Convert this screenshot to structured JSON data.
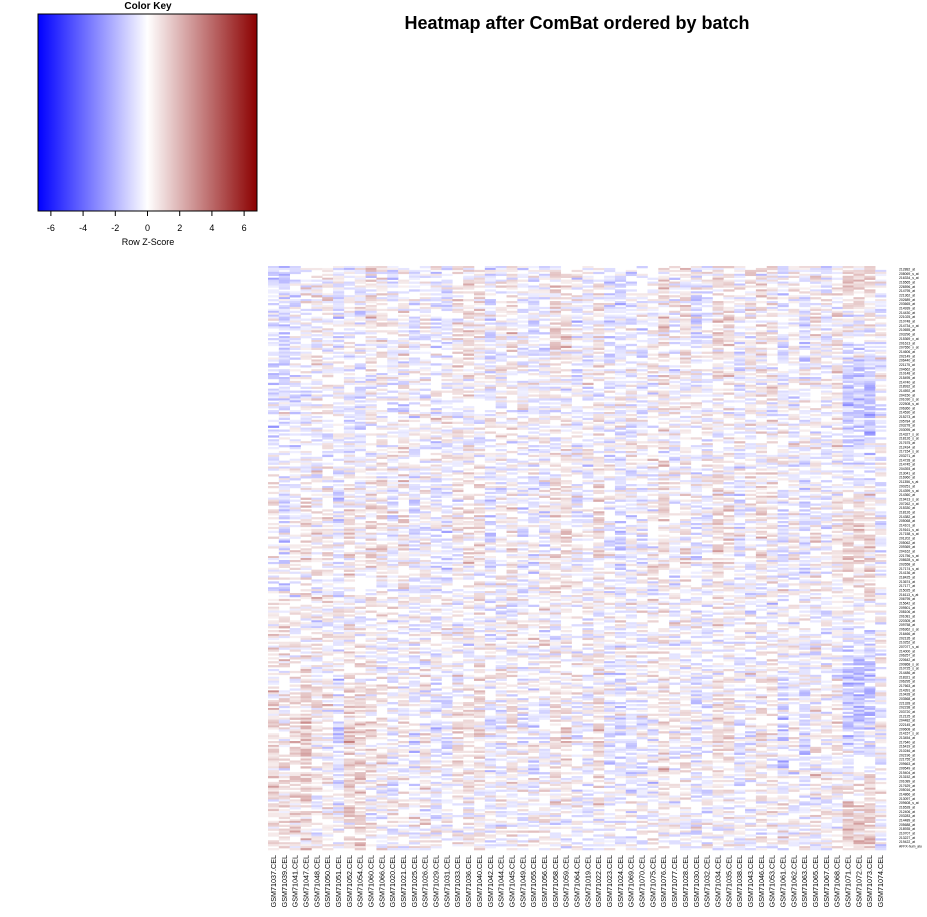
{
  "chart_data": {
    "type": "heatmap",
    "title": "Heatmap after ComBat ordered by batch",
    "color_key": {
      "title": "Color Key",
      "xlabel": "Row Z-Score",
      "ticks": [
        -6,
        -4,
        -2,
        0,
        2,
        4,
        6
      ],
      "range": [
        -6.8,
        6.8
      ],
      "colors": {
        "low": "#0000ff",
        "mid": "#ffffff",
        "high": "#8b0000"
      }
    },
    "columns": [
      "GSM71037.CEL",
      "GSM71039.CEL",
      "GSM71041.CEL",
      "GSM71047.CEL",
      "GSM71048.CEL",
      "GSM71050.CEL",
      "GSM71051.CEL",
      "GSM71052.CEL",
      "GSM71054.CEL",
      "GSM71060.CEL",
      "GSM71066.CEL",
      "GSM71020.CEL",
      "GSM71021.CEL",
      "GSM71025.CEL",
      "GSM71026.CEL",
      "GSM71029.CEL",
      "GSM71031.CEL",
      "GSM71033.CEL",
      "GSM71036.CEL",
      "GSM71040.CEL",
      "GSM71042.CEL",
      "GSM71044.CEL",
      "GSM71045.CEL",
      "GSM71049.CEL",
      "GSM71055.CEL",
      "GSM71056.CEL",
      "GSM71058.CEL",
      "GSM71059.CEL",
      "GSM71064.CEL",
      "GSM71019.CEL",
      "GSM71022.CEL",
      "GSM71023.CEL",
      "GSM71024.CEL",
      "GSM71069.CEL",
      "GSM71070.CEL",
      "GSM71075.CEL",
      "GSM71076.CEL",
      "GSM71077.CEL",
      "GSM71028.CEL",
      "GSM71030.CEL",
      "GSM71032.CEL",
      "GSM71034.CEL",
      "GSM71035.CEL",
      "GSM71038.CEL",
      "GSM71043.CEL",
      "GSM71046.CEL",
      "GSM71053.CEL",
      "GSM71061.CEL",
      "GSM71062.CEL",
      "GSM71063.CEL",
      "GSM71065.CEL",
      "GSM71067.CEL",
      "GSM71068.CEL",
      "GSM71071.CEL",
      "GSM71072.CEL",
      "GSM71073.CEL",
      "GSM71074.CEL"
    ],
    "row_labels": [
      "212882_at",
      "208069_s_at",
      "216334_s_at",
      "216565_at",
      "226596_at",
      "214795_at",
      "221362_at",
      "202689_at",
      "203665_at",
      "214939_at",
      "214430_at",
      "221025_at",
      "210748_at",
      "214734_x_at",
      "210655_at",
      "203296_at",
      "215369_x_at",
      "201613_at",
      "207650_x_at",
      "214606_at",
      "202149_at",
      "206440_at",
      "221175_at",
      "204662_at",
      "210148_at",
      "215495_at",
      "214740_at",
      "218932_at",
      "214592_at",
      "204150_at",
      "201030_s_at",
      "222508_s_at",
      "206360_at",
      "214530_at",
      "215273_at",
      "205784_at",
      "203278_at",
      "203095_at",
      "214327_s_at",
      "218126_s_at",
      "217675_at",
      "212434_at",
      "217154_s_at",
      "203271_at",
      "214728_at",
      "214745_at",
      "204393_at",
      "213041_at",
      "216960_at",
      "211356_s_at",
      "200251_at",
      "214399_s_at",
      "214360_at",
      "219413_s_at",
      "207262_x_at",
      "215330_at",
      "218126_at",
      "214382_at",
      "205068_at",
      "214101_at",
      "219161_s_at",
      "217158_s_at",
      "201202_at",
      "205062_at",
      "209369_at",
      "204162_at",
      "221756_s_at",
      "208628_s_at",
      "202658_at",
      "217174_s_at",
      "214136_at",
      "218425_at",
      "213674_at",
      "217177_at",
      "215025_at",
      "216113_s_at",
      "206795_at",
      "215642_at",
      "209501_at",
      "208106_at",
      "201081_at",
      "220305_at",
      "209758_at",
      "206362_s_at",
      "216466_at",
      "202135_at",
      "210252_at",
      "207077_s_at",
      "214000_at",
      "206257_at",
      "220642_at",
      "200868_s_at",
      "210725_s_at",
      "214486_at",
      "218321_at",
      "206295_at",
      "217663_at",
      "214391_at",
      "210428_at",
      "203568_at",
      "221328_at",
      "202238_at",
      "203720_at",
      "212125_at",
      "204482_at",
      "222145_at",
      "209608_at",
      "214157_s_at",
      "213454_at",
      "217640_at",
      "216419_at",
      "210246_at",
      "202196_at",
      "221755_at",
      "209663_at",
      "209549_at",
      "219404_at",
      "213152_at",
      "201089_at",
      "217629_at",
      "205016_at",
      "214866_at",
      "213097_at",
      "209608_s_at",
      "216528_at",
      "212406_at",
      "203283_at",
      "214489_at",
      "205688_at",
      "218935_at",
      "210707_at",
      "213227_at",
      "219422_at",
      "AFFX-hum_alu"
    ]
  }
}
